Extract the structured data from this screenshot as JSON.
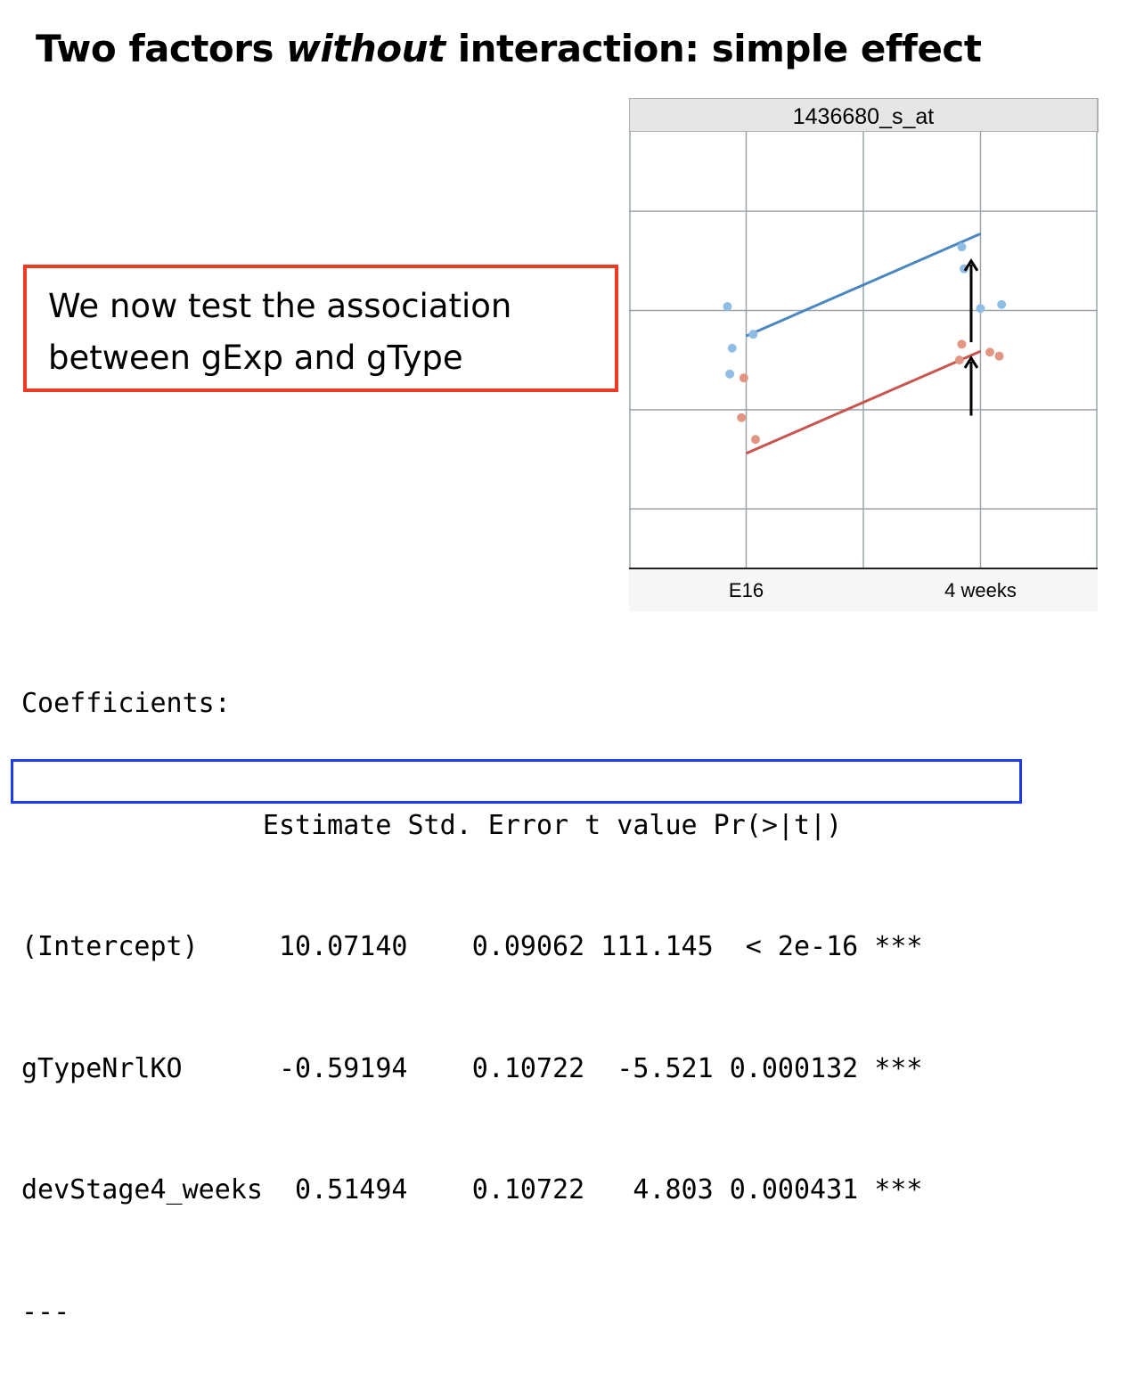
{
  "title": {
    "part1": "Two factors ",
    "part2": "without",
    "part3": " interaction: simple effect"
  },
  "callout": {
    "line1": "We now test the association",
    "line2": "between gExp and gType"
  },
  "chart_data": {
    "type": "scatter",
    "title": "1436680_s_at",
    "categories": [
      "E16",
      "4_weeks"
    ],
    "tick_labels": [
      "E16",
      "4 weeks"
    ],
    "grid": true,
    "series": [
      {
        "color": "#4a86c0",
        "point_color": "#8fbde3",
        "points": [
          [
            0.92,
            10.22
          ],
          [
            0.93,
            9.88
          ],
          [
            1.03,
            10.08
          ],
          [
            0.94,
            10.01
          ],
          [
            1.92,
            10.52
          ],
          [
            1.93,
            10.41
          ],
          [
            2.0,
            10.21
          ],
          [
            2.09,
            10.23
          ]
        ],
        "fit": [
          [
            1.0,
            10.0714
          ],
          [
            2.0,
            10.5863
          ]
        ]
      },
      {
        "color": "#c9554e",
        "point_color": "#e39584",
        "points": [
          [
            0.99,
            9.86
          ],
          [
            0.98,
            9.66
          ],
          [
            1.04,
            9.55
          ],
          [
            1.91,
            9.95
          ],
          [
            1.92,
            10.03
          ],
          [
            2.04,
            9.99
          ],
          [
            2.08,
            9.97
          ]
        ],
        "fit": [
          [
            1.0,
            9.4795
          ],
          [
            2.0,
            9.9944
          ]
        ]
      }
    ],
    "arrows": [
      {
        "x": 1.96,
        "from": 10.04,
        "to": 10.45
      },
      {
        "x": 1.96,
        "from": 9.67,
        "to": 9.96
      }
    ],
    "ylim": [
      8.9,
      11.1
    ],
    "xlim": [
      0.5,
      2.5
    ],
    "y_grid": [
      9.2,
      9.7,
      10.2,
      10.7
    ]
  },
  "coefficients": {
    "heading": "Coefficients:",
    "header": "               Estimate Std. Error t value Pr(>|t|)",
    "rows": [
      "(Intercept)     10.07140    0.09062 111.145  < 2e-16 ***",
      "gTypeNrlKO      -0.59194    0.10722  -5.521 0.000132 ***",
      "devStage4_weeks  0.51494    0.10722   4.803 0.000431 ***"
    ],
    "footer": "---"
  }
}
